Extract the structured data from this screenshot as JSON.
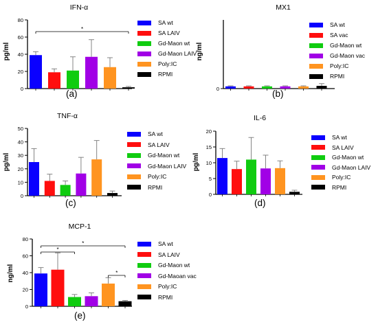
{
  "colors": {
    "blue": "#0a00ff",
    "red": "#ff0e0e",
    "green": "#10cc10",
    "purple": "#a100e6",
    "orange": "#ff9420",
    "black": "#000000",
    "error": "#777777"
  },
  "chart_data": [
    {
      "id": "a",
      "type": "bar",
      "panel_label": "(a)",
      "title": "IFN-α",
      "ylabel": "pg/ml",
      "ylim": [
        0,
        80
      ],
      "yticks": [
        0,
        20,
        40,
        60,
        80
      ],
      "categories": [
        "SA wt",
        "SA LAIV",
        "Gd-Maon wt",
        "Gd-Maon LAIV",
        "Poly:IC",
        "RPMI"
      ],
      "values": [
        39,
        19,
        21,
        37,
        25,
        1.5
      ],
      "errors": [
        4,
        4,
        16,
        20,
        11,
        1
      ],
      "colors": [
        "blue",
        "red",
        "green",
        "purple",
        "orange",
        "black"
      ],
      "significance": [
        {
          "from": 0,
          "to": 5,
          "label": "*"
        }
      ]
    },
    {
      "id": "b",
      "type": "bar",
      "panel_label": "(b)",
      "title": "MX1",
      "ylabel": "ng/ml",
      "ylim": [
        0,
        25
      ],
      "yticks": [
        0
      ],
      "categories": [
        "SA wt",
        "SA vac",
        "Gd-Maon wt",
        "Gd-Maon vac",
        "Poly:IC",
        "RPMI"
      ],
      "values": [
        0.8,
        0.8,
        0.8,
        0.8,
        0.8,
        1.0
      ],
      "errors": [
        0.2,
        0.2,
        0.2,
        0.2,
        0.2,
        0.8
      ],
      "colors": [
        "blue",
        "red",
        "green",
        "purple",
        "orange",
        "black"
      ],
      "significance": []
    },
    {
      "id": "c",
      "type": "bar",
      "panel_label": "(c)",
      "title": "TNF-α",
      "ylabel": "pg/ml",
      "ylim": [
        0,
        50
      ],
      "yticks": [
        0,
        10,
        20,
        30,
        40,
        50
      ],
      "categories": [
        "SA wt",
        "SA LAIV",
        "Gd-Maon wt",
        "Gd-Maon LAIV",
        "Poly:IC",
        "RPMI"
      ],
      "values": [
        25,
        11,
        8,
        16.5,
        27,
        2
      ],
      "errors": [
        10,
        5,
        3,
        12,
        14,
        1.5
      ],
      "colors": [
        "blue",
        "red",
        "green",
        "purple",
        "orange",
        "black"
      ],
      "significance": []
    },
    {
      "id": "d",
      "type": "bar",
      "panel_label": "(d)",
      "title": "IL-6",
      "ylabel": "pg/ml",
      "ylim": [
        0,
        20
      ],
      "yticks": [
        0,
        5,
        10,
        15,
        20
      ],
      "categories": [
        "SA wt",
        "SA LAIV",
        "Gd-Maon wt",
        "Gd-Maon LAIV",
        "Poly:IC",
        "RPMI"
      ],
      "values": [
        11.5,
        8,
        11,
        8.2,
        8.3,
        0.8
      ],
      "errors": [
        3,
        2.5,
        7,
        4.2,
        2.3,
        0.5
      ],
      "colors": [
        "blue",
        "red",
        "green",
        "purple",
        "orange",
        "black"
      ],
      "significance": []
    },
    {
      "id": "e",
      "type": "bar",
      "panel_label": "(e)",
      "title": "MCP-1",
      "ylabel": "ng/ml",
      "ylim": [
        0,
        80
      ],
      "yticks": [
        0,
        20,
        40,
        60,
        80
      ],
      "categories": [
        "SA wt",
        "SA LAIV",
        "Gd-Maon wt",
        "Gd-Maoan vac",
        "Poly:IC",
        "RPMI"
      ],
      "values": [
        39,
        43.5,
        11,
        12,
        27,
        6
      ],
      "errors": [
        7,
        20,
        3,
        4,
        7,
        1
      ],
      "colors": [
        "blue",
        "red",
        "green",
        "purple",
        "orange",
        "black"
      ],
      "significance": [
        {
          "from": 0,
          "to": 2,
          "label": "*"
        },
        {
          "from": 0,
          "to": 5,
          "label": "*"
        },
        {
          "from": 4,
          "to": 5,
          "label": "*"
        }
      ]
    }
  ]
}
